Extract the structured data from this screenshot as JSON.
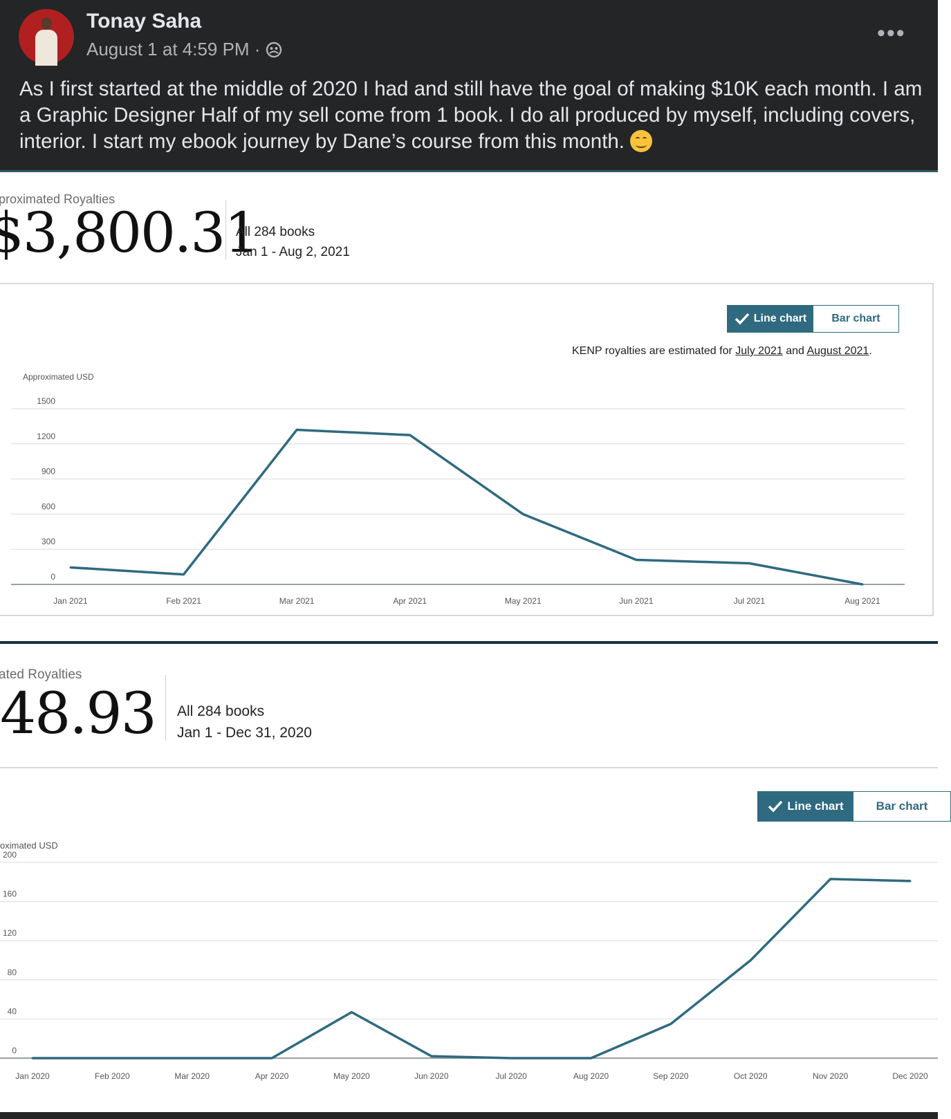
{
  "post": {
    "author": "Tonay Saha",
    "timestamp": "August 1 at 4:59 PM ·",
    "privacy_icon": "friends-globe-icon",
    "more_icon": "more-horizontal-icon",
    "text": "As I first started at the middle of 2020 I had and still have the goal of making $10K each month. I am a Graphic Designer Half of my sell come from 1 book. I do all produced by myself, including covers, interior. I start my ebook journey by Dane’s course from this month.",
    "emoji": "smiling-face-emoji"
  },
  "report_2021": {
    "label": "proximated Royalties",
    "amount": "$3,800.31",
    "scope": "All 284 books",
    "range": "Jan 1 - Aug 2, 2021",
    "toggle": {
      "line": "Line chart",
      "bar": "Bar chart"
    },
    "kenp": {
      "prefix": "KENP royalties are estimated for ",
      "month1": "July 2021",
      "and": " and ",
      "month2": "August 2021",
      "suffix": "."
    },
    "y_axis_label": "Approximated USD"
  },
  "report_2020": {
    "label": "ated Royalties",
    "amount": "48.93",
    "scope": "All 284 books",
    "range": "Jan 1 - Dec 31, 2020",
    "toggle": {
      "line": "Line chart",
      "bar": "Bar chart"
    },
    "y_axis_label": "oximated USD"
  },
  "colors": {
    "line": "#2f6a80",
    "accent": "#2f6a80",
    "post_bg": "#242526"
  },
  "chart_data": [
    {
      "type": "line",
      "categories": [
        "Jan 2021",
        "Feb 2021",
        "Mar 2021",
        "Apr 2021",
        "May 2021",
        "Jun 2021",
        "Jul 2021",
        "Aug 2021"
      ],
      "values": [
        145,
        85,
        1320,
        1275,
        600,
        210,
        180,
        0
      ],
      "ylabel": "Approximated USD",
      "ylim": [
        0,
        1500
      ],
      "yticks": [
        0,
        300,
        600,
        900,
        1200,
        1500
      ],
      "ytick_labels": [
        "0",
        "300",
        "600",
        "900",
        "1200",
        "1500"
      ],
      "grid": true
    },
    {
      "type": "line",
      "categories": [
        "Jan 2020",
        "Feb 2020",
        "Mar 2020",
        "Apr 2020",
        "May 2020",
        "Jun 2020",
        "Jul 2020",
        "Aug 2020",
        "Sep 2020",
        "Oct 2020",
        "Nov 2020",
        "Dec 2020"
      ],
      "values": [
        0,
        0,
        0,
        0,
        47,
        2,
        0,
        0,
        35,
        100,
        183,
        181
      ],
      "ylabel": "oximated USD",
      "ylim": [
        0,
        200
      ],
      "yticks": [
        0,
        40,
        80,
        120,
        160,
        200
      ],
      "ytick_labels": [
        "0",
        "40",
        "80",
        "120",
        "160",
        "200"
      ],
      "grid": true
    }
  ]
}
